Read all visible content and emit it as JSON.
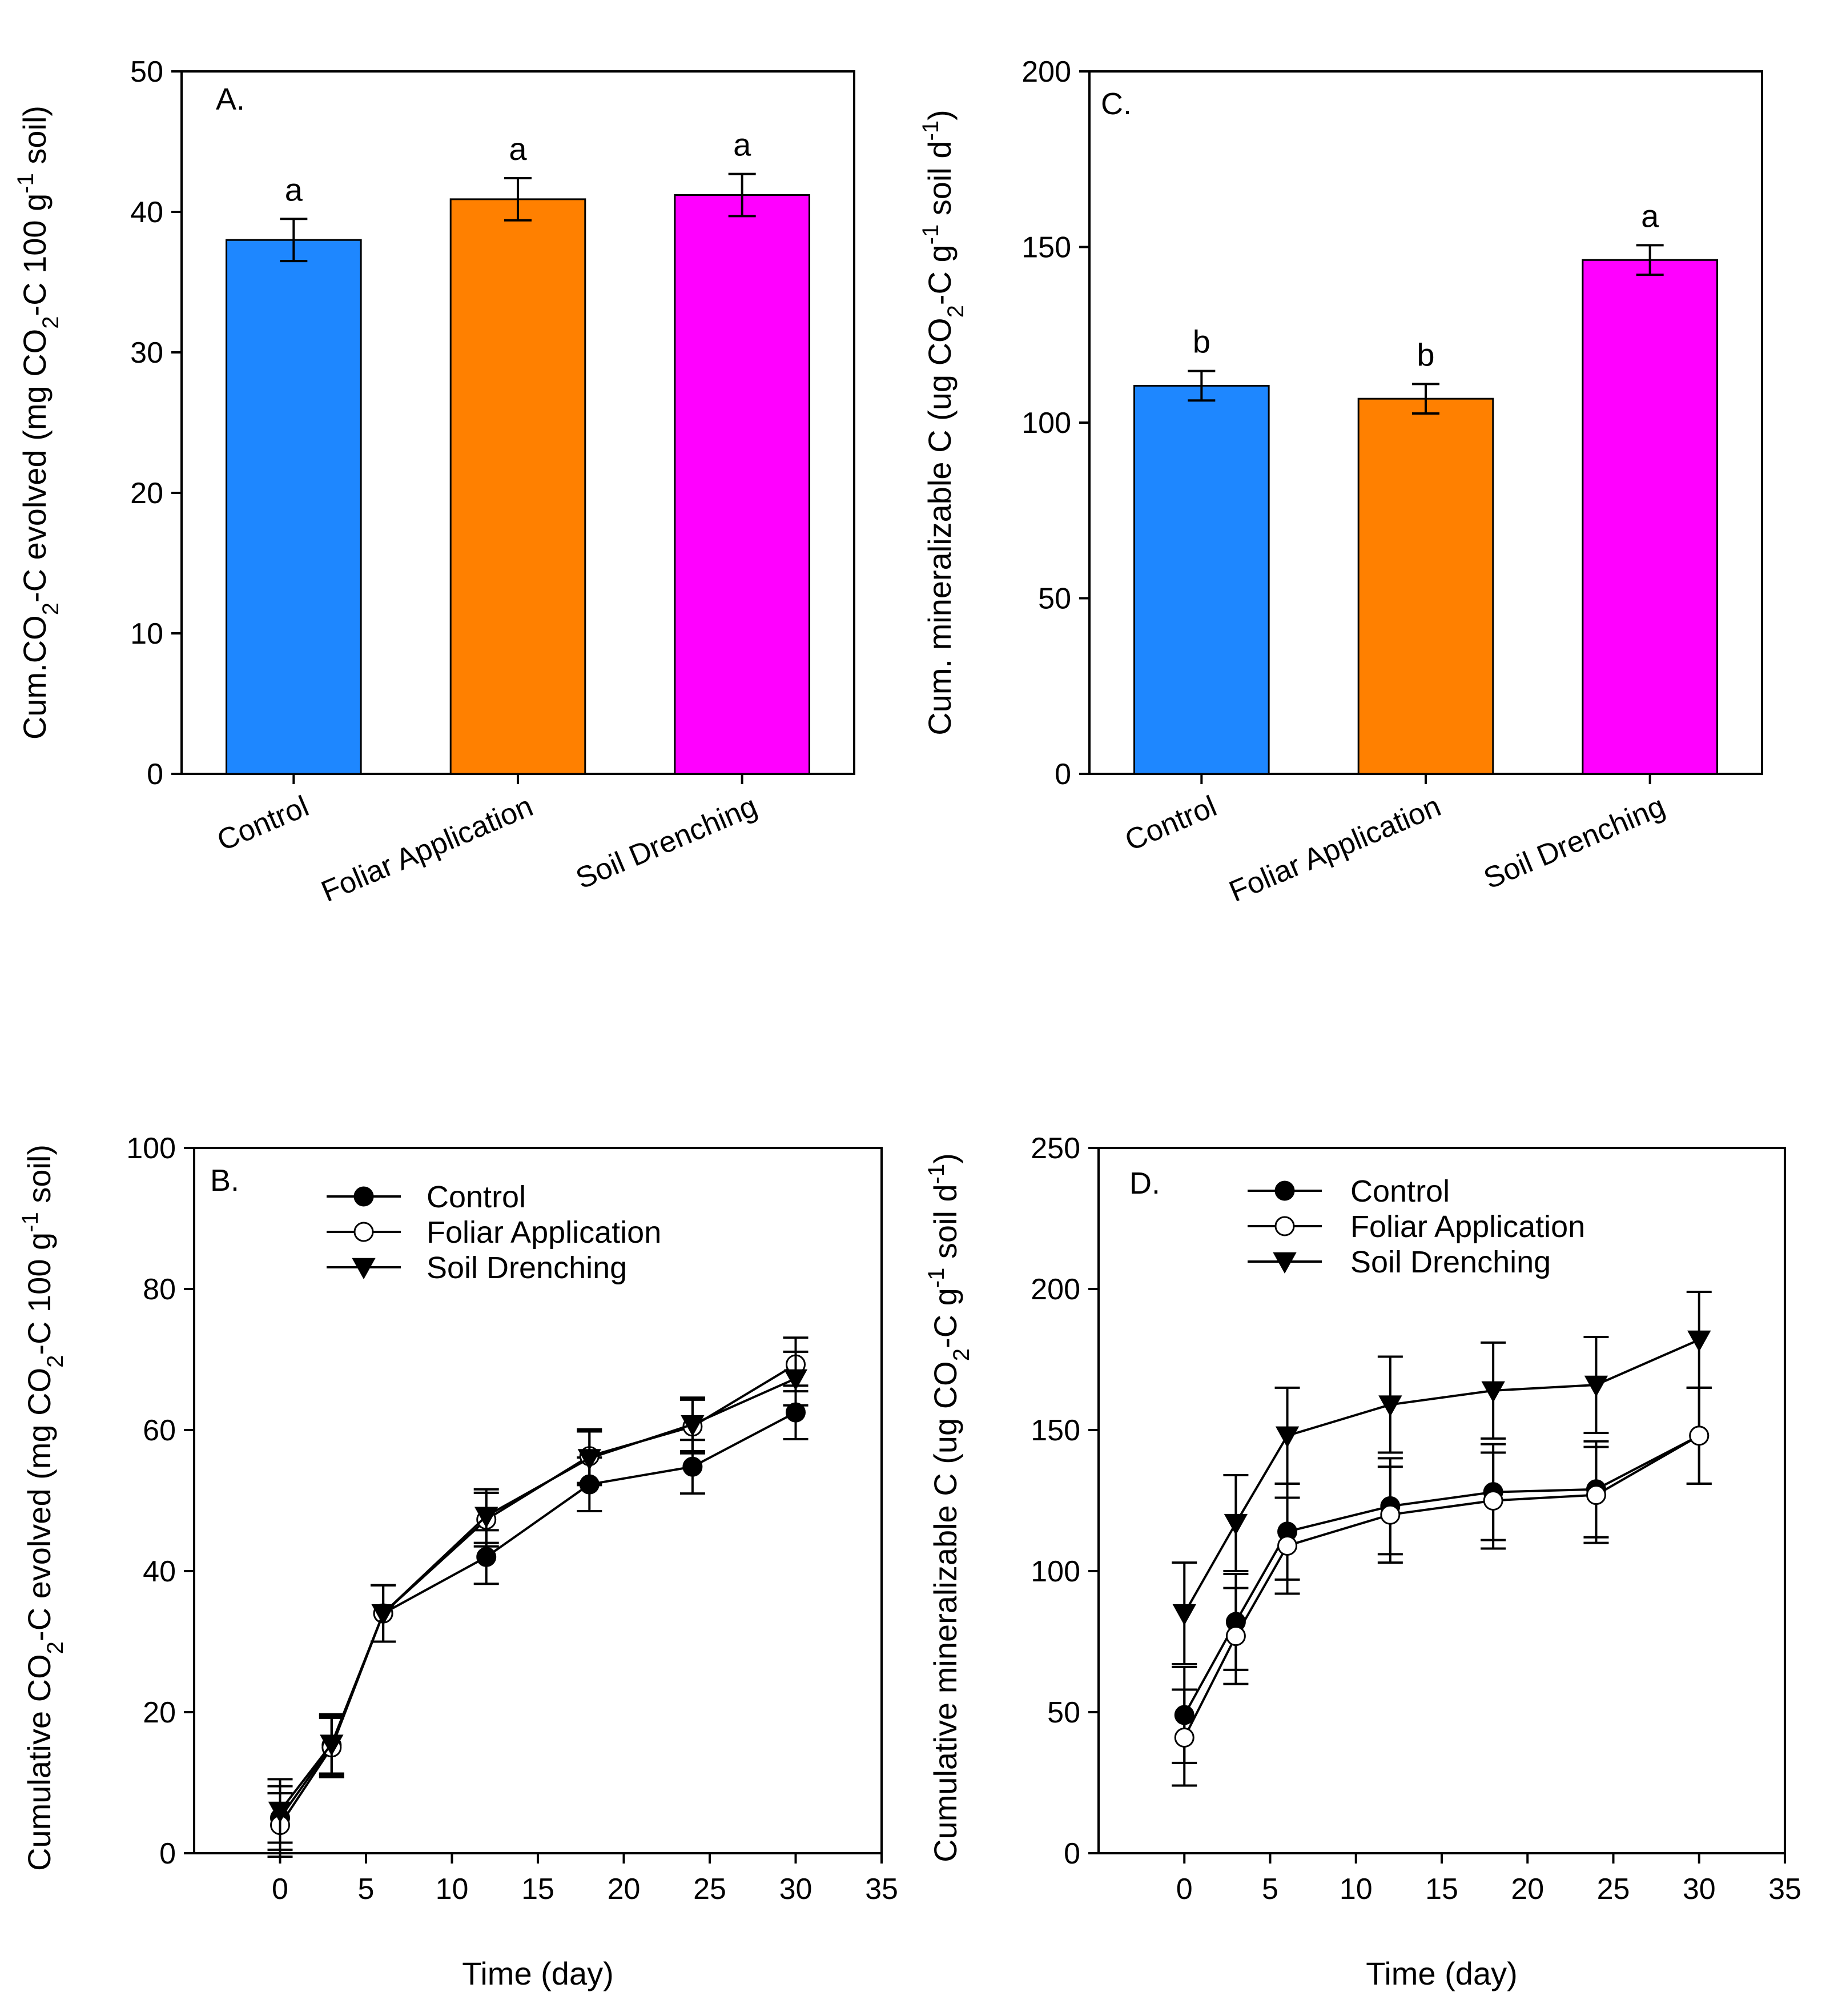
{
  "figure": {
    "background": "#ffffff"
  },
  "chart_data": [
    {
      "id": "A",
      "type": "bar",
      "panel_label": "A.",
      "categories": [
        "Control",
        "Foliar Application",
        "Soil Drenching"
      ],
      "values": [
        38.0,
        40.9,
        41.2
      ],
      "errors": [
        1.5,
        1.5,
        1.5
      ],
      "letters": [
        "a",
        "a",
        "a"
      ],
      "colors": [
        "#1e87ff",
        "#ff8000",
        "#ff00ff"
      ],
      "ylabel_parts": [
        "Cum.CO",
        "2",
        "-C evolved (mg CO",
        "2",
        "-C 100 g",
        "-1",
        " soil)"
      ],
      "ylim": [
        0,
        50
      ],
      "yticks": [
        0,
        10,
        20,
        30,
        40,
        50
      ]
    },
    {
      "id": "C",
      "type": "bar",
      "panel_label": "C.",
      "categories": [
        "Control",
        "Foliar Application",
        "Soil Drenching"
      ],
      "values": [
        110.5,
        106.8,
        146.3
      ],
      "errors": [
        4.2,
        4.2,
        4.2
      ],
      "letters": [
        "b",
        "b",
        "a"
      ],
      "colors": [
        "#1e87ff",
        "#ff8000",
        "#ff00ff"
      ],
      "ylabel_parts": [
        "Cum. mineralizable C (ug CO",
        "2",
        "-C g",
        "-1",
        " soil d",
        "-1",
        ")"
      ],
      "ylim": [
        0,
        200
      ],
      "yticks": [
        0,
        50,
        100,
        150,
        200
      ]
    },
    {
      "id": "B",
      "type": "line",
      "panel_label": "B.",
      "x": [
        0,
        3,
        6,
        12,
        18,
        24,
        30
      ],
      "series": [
        {
          "name": "Control",
          "marker": "filled-circle",
          "values": [
            5.0,
            15.3,
            34.0,
            42.0,
            52.3,
            54.8,
            62.5
          ],
          "errors": [
            4.5,
            4.2,
            4.0,
            3.8,
            3.8,
            3.8,
            3.8
          ]
        },
        {
          "name": "Foliar Application",
          "marker": "open-circle",
          "values": [
            4.0,
            15.0,
            34.0,
            47.3,
            56.3,
            60.5,
            69.3
          ],
          "errors": [
            4.5,
            4.2,
            4.0,
            3.8,
            3.8,
            3.8,
            3.8
          ]
        },
        {
          "name": "Soil Drenching",
          "marker": "filled-triangle-down",
          "values": [
            6.0,
            15.5,
            34.0,
            47.8,
            56.0,
            60.8,
            67.3
          ],
          "errors": [
            4.5,
            4.2,
            4.0,
            3.8,
            3.8,
            3.8,
            3.8
          ]
        }
      ],
      "xlabel": "Time (day)",
      "ylabel_parts": [
        "Cumulative CO",
        "2",
        "-C evolved (mg CO",
        "2",
        "-C 100 g",
        "-1",
        " soil)"
      ],
      "xlim": [
        -5,
        35
      ],
      "ylim": [
        0,
        100
      ],
      "xticks": [
        0,
        5,
        10,
        15,
        20,
        25,
        30,
        35
      ],
      "yticks": [
        0,
        20,
        40,
        60,
        80,
        100
      ]
    },
    {
      "id": "D",
      "type": "line",
      "panel_label": "D.",
      "x": [
        0,
        3,
        6,
        12,
        18,
        24,
        30
      ],
      "series": [
        {
          "name": "Control",
          "marker": "filled-circle",
          "values": [
            49,
            82,
            114,
            123,
            128,
            129,
            148
          ],
          "errors": [
            17,
            17,
            17,
            17,
            17,
            17,
            17
          ]
        },
        {
          "name": "Foliar Application",
          "marker": "open-circle",
          "values": [
            41,
            77,
            109,
            120,
            125,
            127,
            148
          ],
          "errors": [
            17,
            17,
            17,
            17,
            17,
            17,
            17
          ]
        },
        {
          "name": "Soil Drenching",
          "marker": "filled-triangle-down",
          "values": [
            85,
            117,
            148,
            159,
            164,
            166,
            182
          ],
          "errors": [
            18,
            17,
            17,
            17,
            17,
            17,
            17
          ]
        }
      ],
      "xlabel": "Time (day)",
      "ylabel_parts": [
        "Cumulative  mineralizable C (ug CO",
        "2",
        "-C g",
        "-1",
        " soil d",
        "-1",
        ")"
      ],
      "xlim": [
        -5,
        35
      ],
      "ylim": [
        0,
        250
      ],
      "xticks": [
        0,
        5,
        10,
        15,
        20,
        25,
        30,
        35
      ],
      "yticks": [
        0,
        50,
        100,
        150,
        200,
        250
      ]
    }
  ]
}
